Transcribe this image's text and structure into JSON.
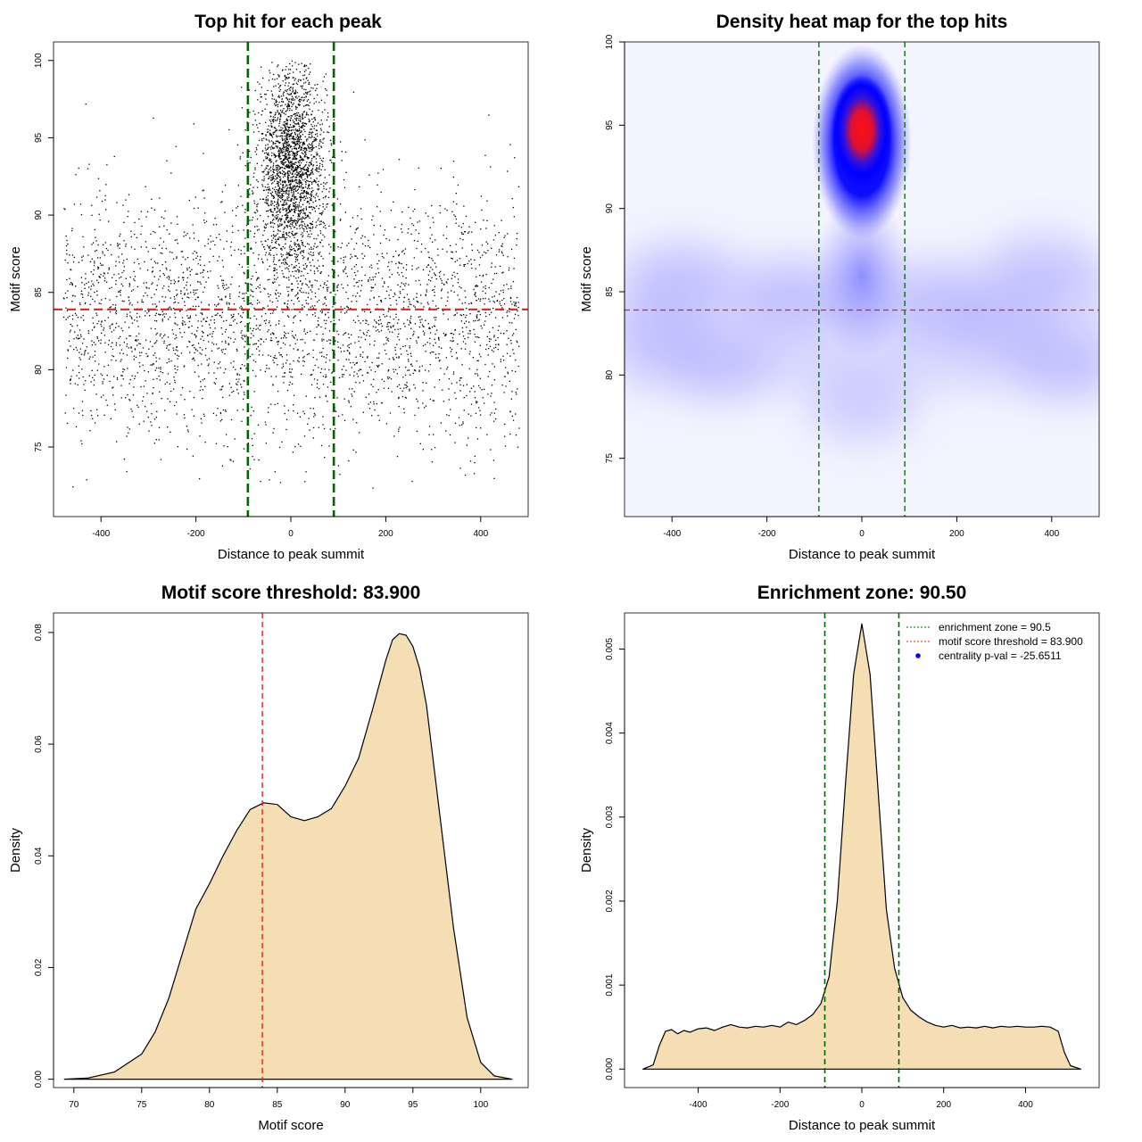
{
  "chart_data": [
    {
      "type": "scatter",
      "title": "Top hit for each peak",
      "xlabel": "Distance to peak summit",
      "ylabel": "Motif score",
      "xlim": [
        -500,
        500
      ],
      "ylim": [
        70.5,
        101.2
      ],
      "xticks": [
        -400,
        -200,
        0,
        200,
        400
      ],
      "yticks": [
        75,
        80,
        85,
        90,
        95,
        100
      ],
      "xtick_labels": [
        "-400",
        "-200",
        "0",
        "200",
        "400"
      ],
      "ytick_labels": [
        "75",
        "80",
        "85",
        "90",
        "95",
        "100"
      ],
      "vlines": [
        -90.5,
        90.5
      ],
      "hline": 83.9,
      "point_color": "#000000",
      "vline_color": "#006400",
      "hline_color": "#e32020",
      "point_groups": [
        {
          "x_range": [
            -480,
            480
          ],
          "y_center": 83.5,
          "y_sd": 4.0,
          "y_range": [
            72,
            100
          ],
          "n": 3100
        },
        {
          "x_center": 0,
          "x_sd": 35,
          "y_center": 93.0,
          "y_sd": 3.2,
          "y_range": [
            84,
            100
          ],
          "n": 2300
        }
      ]
    },
    {
      "type": "heatmap",
      "title": "Density heat map for the top hits",
      "xlabel": "Distance to peak summit",
      "ylabel": "Motif score",
      "xlim": [
        -500,
        500
      ],
      "ylim": [
        71.5,
        100
      ],
      "xticks": [
        -400,
        -200,
        0,
        200,
        400
      ],
      "yticks": [
        75,
        80,
        85,
        90,
        95,
        100
      ],
      "xtick_labels": [
        "-400",
        "-200",
        "0",
        "200",
        "400"
      ],
      "ytick_labels": [
        "75",
        "80",
        "85",
        "90",
        "95",
        "100"
      ],
      "vlines": [
        -90.5,
        90.5
      ],
      "hline": 83.9,
      "color_scale": [
        "#ffffff",
        "#0000ff",
        "#ff0000"
      ],
      "peak": {
        "x": 0,
        "y": 94.7
      },
      "vline_color": "#006400",
      "hline_color": "#e32020"
    },
    {
      "type": "area",
      "title": "Motif score threshold: 83.900",
      "xlabel": "Motif score",
      "ylabel": "Density",
      "xlim": [
        68.5,
        103.5
      ],
      "ylim": [
        -0.0015,
        0.0835
      ],
      "xticks": [
        70,
        75,
        80,
        85,
        90,
        95,
        100
      ],
      "yticks": [
        0,
        0.02,
        0.04,
        0.06,
        0.08
      ],
      "xtick_labels": [
        "70",
        "75",
        "80",
        "85",
        "90",
        "95",
        "100"
      ],
      "ytick_labels": [
        "0.00",
        "0.02",
        "0.04",
        "0.06",
        "0.08"
      ],
      "x": [
        69.3,
        71,
        73,
        75,
        76,
        77,
        78,
        79,
        80,
        81,
        82,
        83,
        84,
        85,
        86,
        87,
        88,
        89,
        90,
        91,
        92,
        93,
        93.5,
        94,
        94.5,
        95,
        95.5,
        96,
        97,
        98,
        99,
        100,
        101,
        102.3
      ],
      "y": [
        0.0,
        0.0002,
        0.0013,
        0.0045,
        0.0085,
        0.0145,
        0.0225,
        0.0305,
        0.035,
        0.04,
        0.0445,
        0.0483,
        0.0495,
        0.0492,
        0.047,
        0.0463,
        0.047,
        0.0485,
        0.0525,
        0.0575,
        0.066,
        0.075,
        0.0787,
        0.0798,
        0.0795,
        0.0775,
        0.0735,
        0.067,
        0.047,
        0.027,
        0.011,
        0.003,
        0.0006,
        0.0
      ],
      "vline": 83.9,
      "fill_color": "#f5deb3",
      "vline_color": "#e32020"
    },
    {
      "type": "area",
      "title": "Enrichment zone: 90.50",
      "xlabel": "Distance to peak summit",
      "ylabel": "Density",
      "xlim": [
        -580,
        580
      ],
      "ylim": [
        -0.00022,
        0.00543
      ],
      "xticks": [
        -400,
        -200,
        0,
        200,
        400
      ],
      "yticks": [
        0,
        0.001,
        0.002,
        0.003,
        0.004,
        0.005
      ],
      "xtick_labels": [
        "-400",
        "-200",
        "0",
        "200",
        "400"
      ],
      "ytick_labels": [
        "0.000",
        "0.001",
        "0.002",
        "0.003",
        "0.004",
        "0.005"
      ],
      "x": [
        -535,
        -510,
        -495,
        -480,
        -465,
        -450,
        -435,
        -420,
        -400,
        -380,
        -360,
        -340,
        -320,
        -300,
        -280,
        -260,
        -240,
        -220,
        -200,
        -180,
        -160,
        -140,
        -120,
        -100,
        -80,
        -60,
        -40,
        -20,
        0,
        20,
        40,
        60,
        80,
        100,
        120,
        140,
        160,
        180,
        200,
        220,
        240,
        260,
        280,
        300,
        320,
        340,
        360,
        380,
        400,
        420,
        440,
        460,
        480,
        495,
        510,
        535
      ],
      "y": [
        0.0,
        5e-05,
        0.00028,
        0.00045,
        0.00047,
        0.00042,
        0.00046,
        0.00044,
        0.00048,
        0.00049,
        0.00046,
        0.0005,
        0.00053,
        0.0005,
        0.00049,
        0.00051,
        0.0005,
        0.00052,
        0.0005,
        0.00056,
        0.00053,
        0.00058,
        0.00065,
        0.00078,
        0.0011,
        0.002,
        0.0034,
        0.0047,
        0.0053,
        0.0047,
        0.0033,
        0.0019,
        0.0012,
        0.00085,
        0.0007,
        0.00062,
        0.00056,
        0.00052,
        0.0005,
        0.00052,
        0.00049,
        0.0005,
        0.00049,
        0.00051,
        0.00049,
        0.00051,
        0.0005,
        0.00051,
        0.0005,
        0.0005,
        0.00051,
        0.0005,
        0.00045,
        0.0002,
        4e-05,
        0.0
      ],
      "vlines": [
        -90.5,
        90.5
      ],
      "fill_color": "#f5deb3",
      "vline_color": "#006400",
      "legend": {
        "position": "top-right",
        "entries": [
          {
            "label": "enrichment zone = 90.5",
            "style": "dotted-line",
            "color": "#006400"
          },
          {
            "label": "motif score threshold = 83.900",
            "style": "dotted-line",
            "color": "#e32020"
          },
          {
            "label": "centrality p-val = -25.6511",
            "style": "point",
            "color": "#0000ff"
          }
        ]
      }
    }
  ]
}
